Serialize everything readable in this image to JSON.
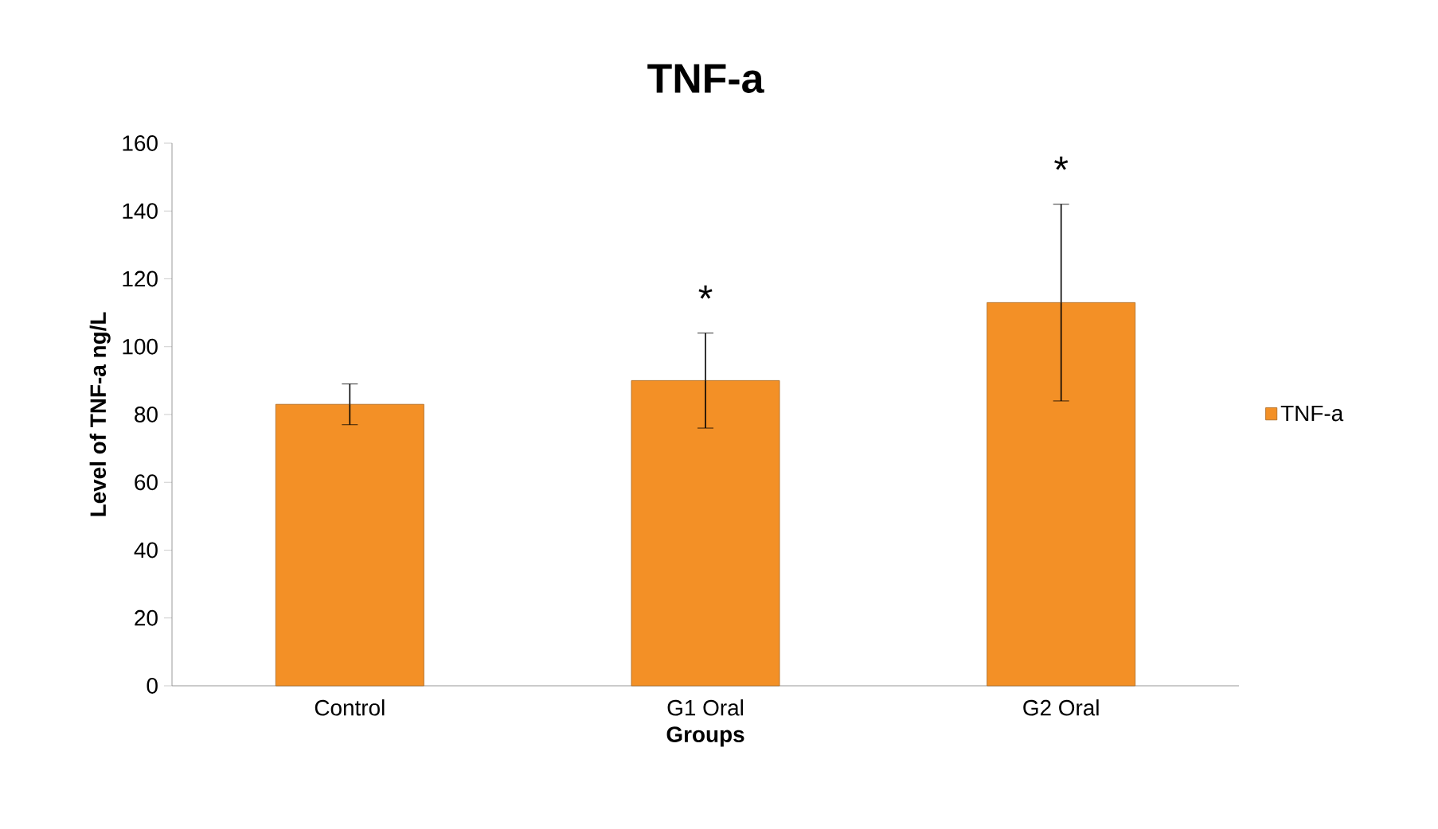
{
  "chart_data": {
    "type": "bar",
    "title": "TNF-a",
    "xlabel": "Groups",
    "ylabel": "Level of TNF-a ng/L",
    "categories": [
      "Control",
      "G1 Oral",
      "G2 Oral"
    ],
    "series": [
      {
        "name": "TNF-a",
        "color": "#f39026",
        "values": [
          83,
          90,
          113
        ],
        "errors": [
          6,
          14,
          29
        ]
      }
    ],
    "ylim": [
      0,
      160
    ],
    "yticks": [
      0,
      20,
      40,
      60,
      80,
      100,
      120,
      140,
      160
    ],
    "annotations": [
      {
        "text": "*",
        "x": "G1 Oral",
        "y": 104
      },
      {
        "text": "*",
        "x": "G2 Oral",
        "y": 142
      }
    ],
    "legend": "right"
  }
}
